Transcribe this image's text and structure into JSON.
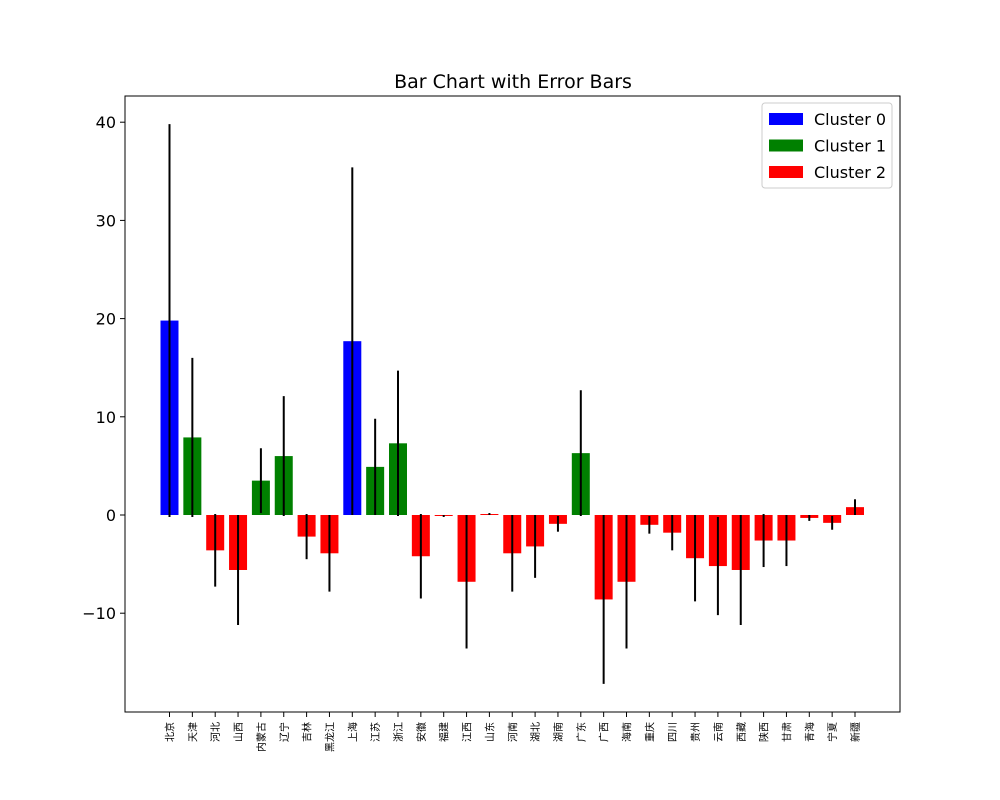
{
  "chart_data": {
    "type": "bar",
    "title": "Bar Chart with Error Bars",
    "xlabel": "",
    "ylabel": "",
    "ylim": [
      -20,
      42.5
    ],
    "yticks": [
      -10,
      0,
      10,
      20,
      30,
      40
    ],
    "ytick_labels": [
      "−10",
      "0",
      "10",
      "20",
      "30",
      "40"
    ],
    "legend_position": "top-right",
    "grid": false,
    "categories": [
      "北京",
      "天津",
      "河北",
      "山西",
      "内蒙古",
      "辽宁",
      "吉林",
      "黑龙江",
      "上海",
      "江苏",
      "浙江",
      "安徽",
      "福建",
      "江西",
      "山东",
      "河南",
      "湖北",
      "湖南",
      "广东",
      "广西",
      "海南",
      "重庆",
      "四川",
      "贵州",
      "云南",
      "西藏",
      "陕西",
      "甘肃",
      "青海",
      "宁夏",
      "新疆"
    ],
    "values": [
      19.8,
      7.9,
      -3.6,
      -5.6,
      3.5,
      6.0,
      -2.2,
      -3.9,
      17.7,
      4.9,
      7.3,
      -4.2,
      -0.1,
      -6.8,
      0.1,
      -3.9,
      -3.2,
      -0.9,
      6.3,
      -8.6,
      -6.8,
      -1.0,
      -1.8,
      -4.4,
      -5.2,
      -5.6,
      -2.6,
      -2.6,
      -0.3,
      -0.8,
      0.8
    ],
    "errors": [
      20.0,
      8.1,
      3.7,
      5.6,
      3.3,
      6.1,
      2.3,
      3.9,
      17.7,
      4.9,
      7.4,
      4.3,
      0.1,
      6.8,
      0.1,
      3.9,
      3.2,
      0.8,
      6.4,
      8.6,
      6.8,
      0.9,
      1.8,
      4.4,
      5.0,
      5.6,
      2.7,
      2.6,
      0.3,
      0.7,
      0.8
    ],
    "clusters": [
      0,
      1,
      2,
      2,
      1,
      1,
      2,
      2,
      0,
      1,
      1,
      2,
      2,
      2,
      2,
      2,
      2,
      2,
      1,
      2,
      2,
      2,
      2,
      2,
      2,
      2,
      2,
      2,
      2,
      2,
      2
    ],
    "series": [
      {
        "name": "Cluster 0",
        "color": "#0000ff"
      },
      {
        "name": "Cluster 1",
        "color": "#008000"
      },
      {
        "name": "Cluster 2",
        "color": "#ff0000"
      }
    ],
    "errorbar_color": "#000000"
  }
}
